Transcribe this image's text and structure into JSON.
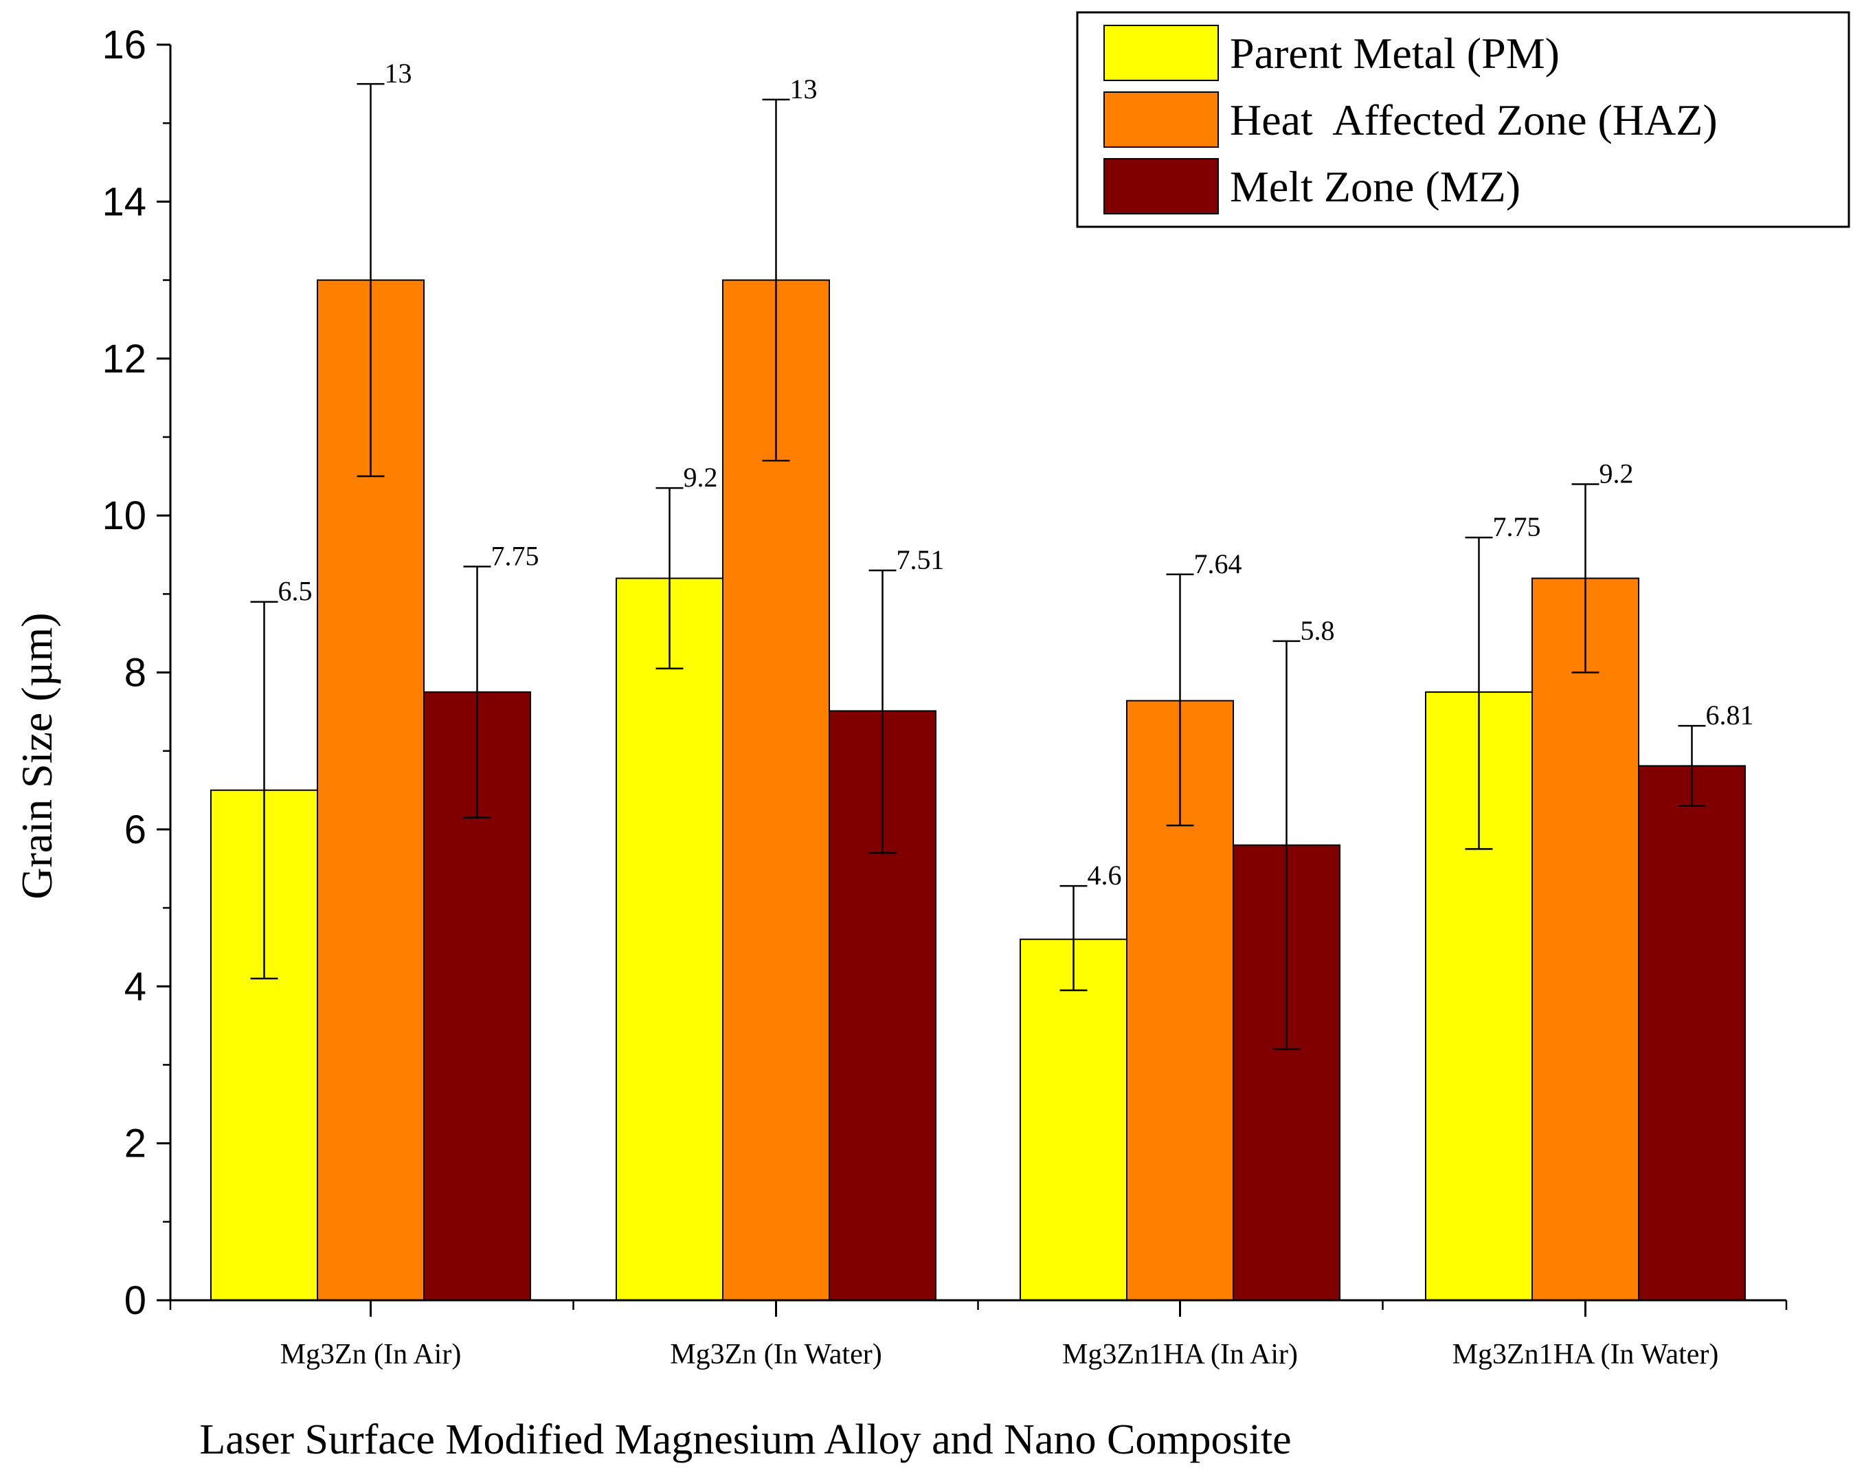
{
  "chart_data": {
    "type": "bar",
    "title": "",
    "xlabel": "Laser Surface Modified Magnesium Alloy and Nano Composite",
    "ylabel": "Grain Size (µm)",
    "ylim": [
      0,
      16
    ],
    "yticks": [
      0,
      2,
      4,
      6,
      8,
      10,
      12,
      14,
      16
    ],
    "ytick_labels": [
      "0",
      "2",
      "4",
      "6",
      "8",
      "10",
      "12",
      "14",
      "16"
    ],
    "categories": [
      "Mg3Zn (In Air)",
      "Mg3Zn (In Water)",
      "Mg3Zn1HA (In Air)",
      "Mg3Zn1HA (In Water)"
    ],
    "legend_position": "top-right",
    "series": [
      {
        "name": "Parent Metal (PM)",
        "color": "#ffff00",
        "values": [
          6.5,
          9.2,
          4.6,
          7.75
        ],
        "labels": [
          "6.5",
          "9.2",
          "4.6",
          "7.75"
        ],
        "error_low": [
          4.1,
          8.05,
          3.95,
          5.75
        ],
        "error_high": [
          8.9,
          10.35,
          5.28,
          9.72
        ]
      },
      {
        "name": "Heat  Affected Zone (HAZ)",
        "color": "#ff8000",
        "values": [
          13,
          13,
          7.64,
          9.2
        ],
        "labels": [
          "13",
          "13",
          "7.64",
          "9.2"
        ],
        "error_low": [
          10.5,
          10.7,
          6.05,
          8.0
        ],
        "error_high": [
          15.5,
          15.3,
          9.25,
          10.4
        ]
      },
      {
        "name": "Melt Zone (MZ)",
        "color": "#800000",
        "values": [
          7.75,
          7.51,
          5.8,
          6.81
        ],
        "labels": [
          "7.75",
          "7.51",
          "5.8",
          "6.81"
        ],
        "error_low": [
          6.15,
          5.7,
          3.2,
          6.3
        ],
        "error_high": [
          9.35,
          9.3,
          8.4,
          7.32
        ]
      }
    ]
  }
}
